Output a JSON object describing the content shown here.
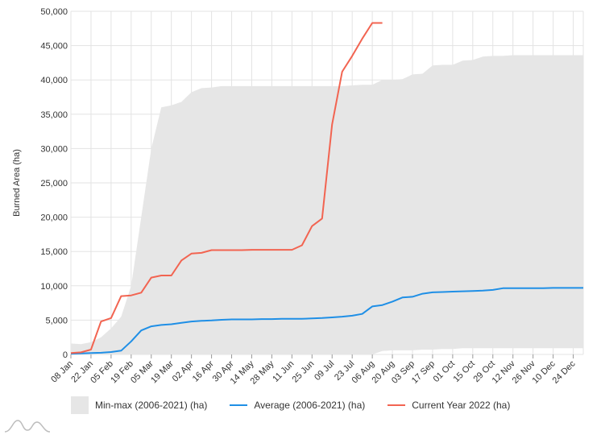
{
  "chart_data": {
    "type": "area",
    "title": "",
    "xlabel": "",
    "ylabel": "Burned Area (ha)",
    "ylim": [
      0,
      50000
    ],
    "y_ticks": [
      0,
      5000,
      10000,
      15000,
      20000,
      25000,
      30000,
      35000,
      40000,
      45000,
      50000
    ],
    "y_tick_labels": [
      "0",
      "5,000",
      "10,000",
      "15,000",
      "20,000",
      "25,000",
      "30,000",
      "35,000",
      "40,000",
      "45,000",
      "50,000"
    ],
    "x_tick_labels": [
      "08 Jan",
      "22 Jan",
      "05 Feb",
      "19 Feb",
      "05 Mar",
      "19 Mar",
      "02 Apr",
      "16 Apr",
      "30 Apr",
      "14 May",
      "28 May",
      "11 Jun",
      "25 Jun",
      "09 Jul",
      "23 Jul",
      "06 Aug",
      "20 Aug",
      "03 Sep",
      "17 Sep",
      "01 Oct",
      "15 Oct",
      "29 Oct",
      "12 Nov",
      "26 Nov",
      "10 Dec",
      "24 Dec"
    ],
    "x_unit": "week",
    "grid": true,
    "legend_position": "bottom",
    "series": [
      {
        "name": "Min-max (2006-2021) (ha)",
        "kind": "band",
        "color": "#e6e6e6",
        "weeks": [
          1,
          2,
          3,
          4,
          5,
          6,
          7,
          8,
          9,
          10,
          11,
          12,
          13,
          14,
          15,
          16,
          17,
          18,
          19,
          20,
          21,
          22,
          23,
          24,
          25,
          26,
          27,
          28,
          29,
          30,
          31,
          32,
          33,
          34,
          35,
          36,
          37,
          38,
          39,
          40,
          41,
          42,
          43,
          44,
          45,
          46,
          47,
          48,
          49,
          50,
          51,
          52
        ],
        "min": [
          0,
          0,
          0,
          0,
          0,
          0,
          0,
          0,
          0,
          0,
          0,
          0,
          0,
          0,
          0,
          0,
          0,
          0,
          0,
          0,
          0,
          0,
          0,
          0,
          0,
          0,
          0,
          0,
          0,
          0,
          0,
          500,
          600,
          600,
          600,
          700,
          700,
          800,
          800,
          900,
          900,
          900,
          900,
          900,
          900,
          900,
          900,
          900,
          900,
          900,
          900,
          900
        ],
        "max": [
          1600,
          1500,
          1800,
          2500,
          3800,
          5500,
          10000,
          20000,
          30000,
          36000,
          36300,
          36800,
          38200,
          38800,
          38900,
          39100,
          39100,
          39100,
          39100,
          39100,
          39100,
          39100,
          39100,
          39100,
          39100,
          39100,
          39100,
          39100,
          39200,
          39300,
          39300,
          40000,
          40000,
          40100,
          40800,
          40900,
          42100,
          42200,
          42200,
          42800,
          42900,
          43400,
          43500,
          43500,
          43600,
          43600,
          43600,
          43600,
          43600,
          43600,
          43600,
          43600
        ]
      },
      {
        "name": "Average (2006-2021) (ha)",
        "kind": "line",
        "color": "#1f8fe6",
        "weeks": [
          1,
          2,
          3,
          4,
          5,
          6,
          7,
          8,
          9,
          10,
          11,
          12,
          13,
          14,
          15,
          16,
          17,
          18,
          19,
          20,
          21,
          22,
          23,
          24,
          25,
          26,
          27,
          28,
          29,
          30,
          31,
          32,
          33,
          34,
          35,
          36,
          37,
          38,
          39,
          40,
          41,
          42,
          43,
          44,
          45,
          46,
          47,
          48,
          49,
          50,
          51,
          52
        ],
        "values": [
          100,
          150,
          200,
          250,
          350,
          550,
          1900,
          3500,
          4100,
          4300,
          4400,
          4600,
          4800,
          4900,
          4950,
          5050,
          5100,
          5100,
          5100,
          5150,
          5150,
          5200,
          5200,
          5200,
          5250,
          5300,
          5400,
          5500,
          5650,
          5900,
          7000,
          7200,
          7700,
          8300,
          8400,
          8850,
          9050,
          9100,
          9150,
          9200,
          9250,
          9300,
          9400,
          9650,
          9650,
          9650,
          9650,
          9650,
          9700,
          9700,
          9700,
          9700
        ]
      },
      {
        "name": "Current Year 2022 (ha)",
        "kind": "line",
        "color": "#f26451",
        "weeks": [
          1,
          2,
          3,
          4,
          5,
          6,
          7,
          8,
          9,
          10,
          11,
          12,
          13,
          14,
          15,
          16,
          17,
          18,
          19,
          20,
          21,
          22,
          23,
          24,
          25,
          26,
          27,
          28,
          29,
          30,
          31,
          32
        ],
        "values": [
          200,
          300,
          700,
          4800,
          5300,
          8500,
          8600,
          9000,
          11200,
          11500,
          11500,
          13700,
          14700,
          14800,
          15200,
          15200,
          15200,
          15200,
          15250,
          15250,
          15250,
          15250,
          15250,
          15900,
          18700,
          19800,
          33500,
          41200,
          43500,
          46000,
          48300,
          48300
        ]
      }
    ]
  },
  "legend": {
    "band_label": "Min-max (2006-2021) (ha)",
    "average_label": "Average (2006-2021) (ha)",
    "current_label": "Current Year 2022 (ha)"
  },
  "logo": {
    "icon": "amcharts-logo-icon"
  }
}
